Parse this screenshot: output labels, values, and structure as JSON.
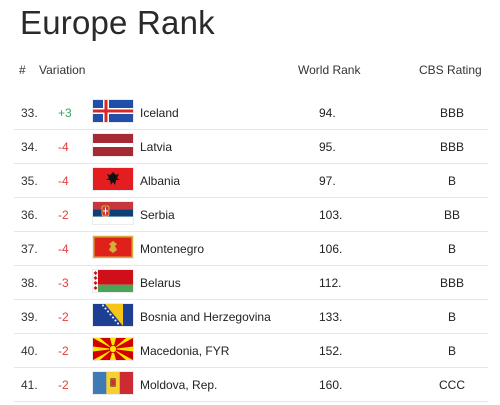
{
  "page": {
    "title": "Europe Rank"
  },
  "table": {
    "headers": {
      "number": "#",
      "variation": "Variation",
      "world_rank": "World Rank",
      "cbs_rating": "CBS Rating"
    },
    "rows": [
      {
        "rank": "33.",
        "variation": "+3",
        "direction": "up",
        "flag": "iceland-flag-icon",
        "country": "Iceland",
        "world_rank": "94.",
        "cbs_rating": "BBB"
      },
      {
        "rank": "34.",
        "variation": "-4",
        "direction": "down",
        "flag": "latvia-flag-icon",
        "country": "Latvia",
        "world_rank": "95.",
        "cbs_rating": "BBB"
      },
      {
        "rank": "35.",
        "variation": "-4",
        "direction": "down",
        "flag": "albania-flag-icon",
        "country": "Albania",
        "world_rank": "97.",
        "cbs_rating": "B"
      },
      {
        "rank": "36.",
        "variation": "-2",
        "direction": "down",
        "flag": "serbia-flag-icon",
        "country": "Serbia",
        "world_rank": "103.",
        "cbs_rating": "BB"
      },
      {
        "rank": "37.",
        "variation": "-4",
        "direction": "down",
        "flag": "montenegro-flag-icon",
        "country": "Montenegro",
        "world_rank": "106.",
        "cbs_rating": "B"
      },
      {
        "rank": "38.",
        "variation": "-3",
        "direction": "down",
        "flag": "belarus-flag-icon",
        "country": "Belarus",
        "world_rank": "112.",
        "cbs_rating": "BBB"
      },
      {
        "rank": "39.",
        "variation": "-2",
        "direction": "down",
        "flag": "bosnia-flag-icon",
        "country": "Bosnia and Herzegovina",
        "world_rank": "133.",
        "cbs_rating": "B"
      },
      {
        "rank": "40.",
        "variation": "-2",
        "direction": "down",
        "flag": "macedonia-flag-icon",
        "country": "Macedonia, FYR",
        "world_rank": "152.",
        "cbs_rating": "B"
      },
      {
        "rank": "41.",
        "variation": "-2",
        "direction": "down",
        "flag": "moldova-flag-icon",
        "country": "Moldova, Rep.",
        "world_rank": "160.",
        "cbs_rating": "CCC"
      }
    ]
  },
  "colors": {
    "variation_up": "#2eaa57",
    "variation_down": "#e0413a"
  }
}
